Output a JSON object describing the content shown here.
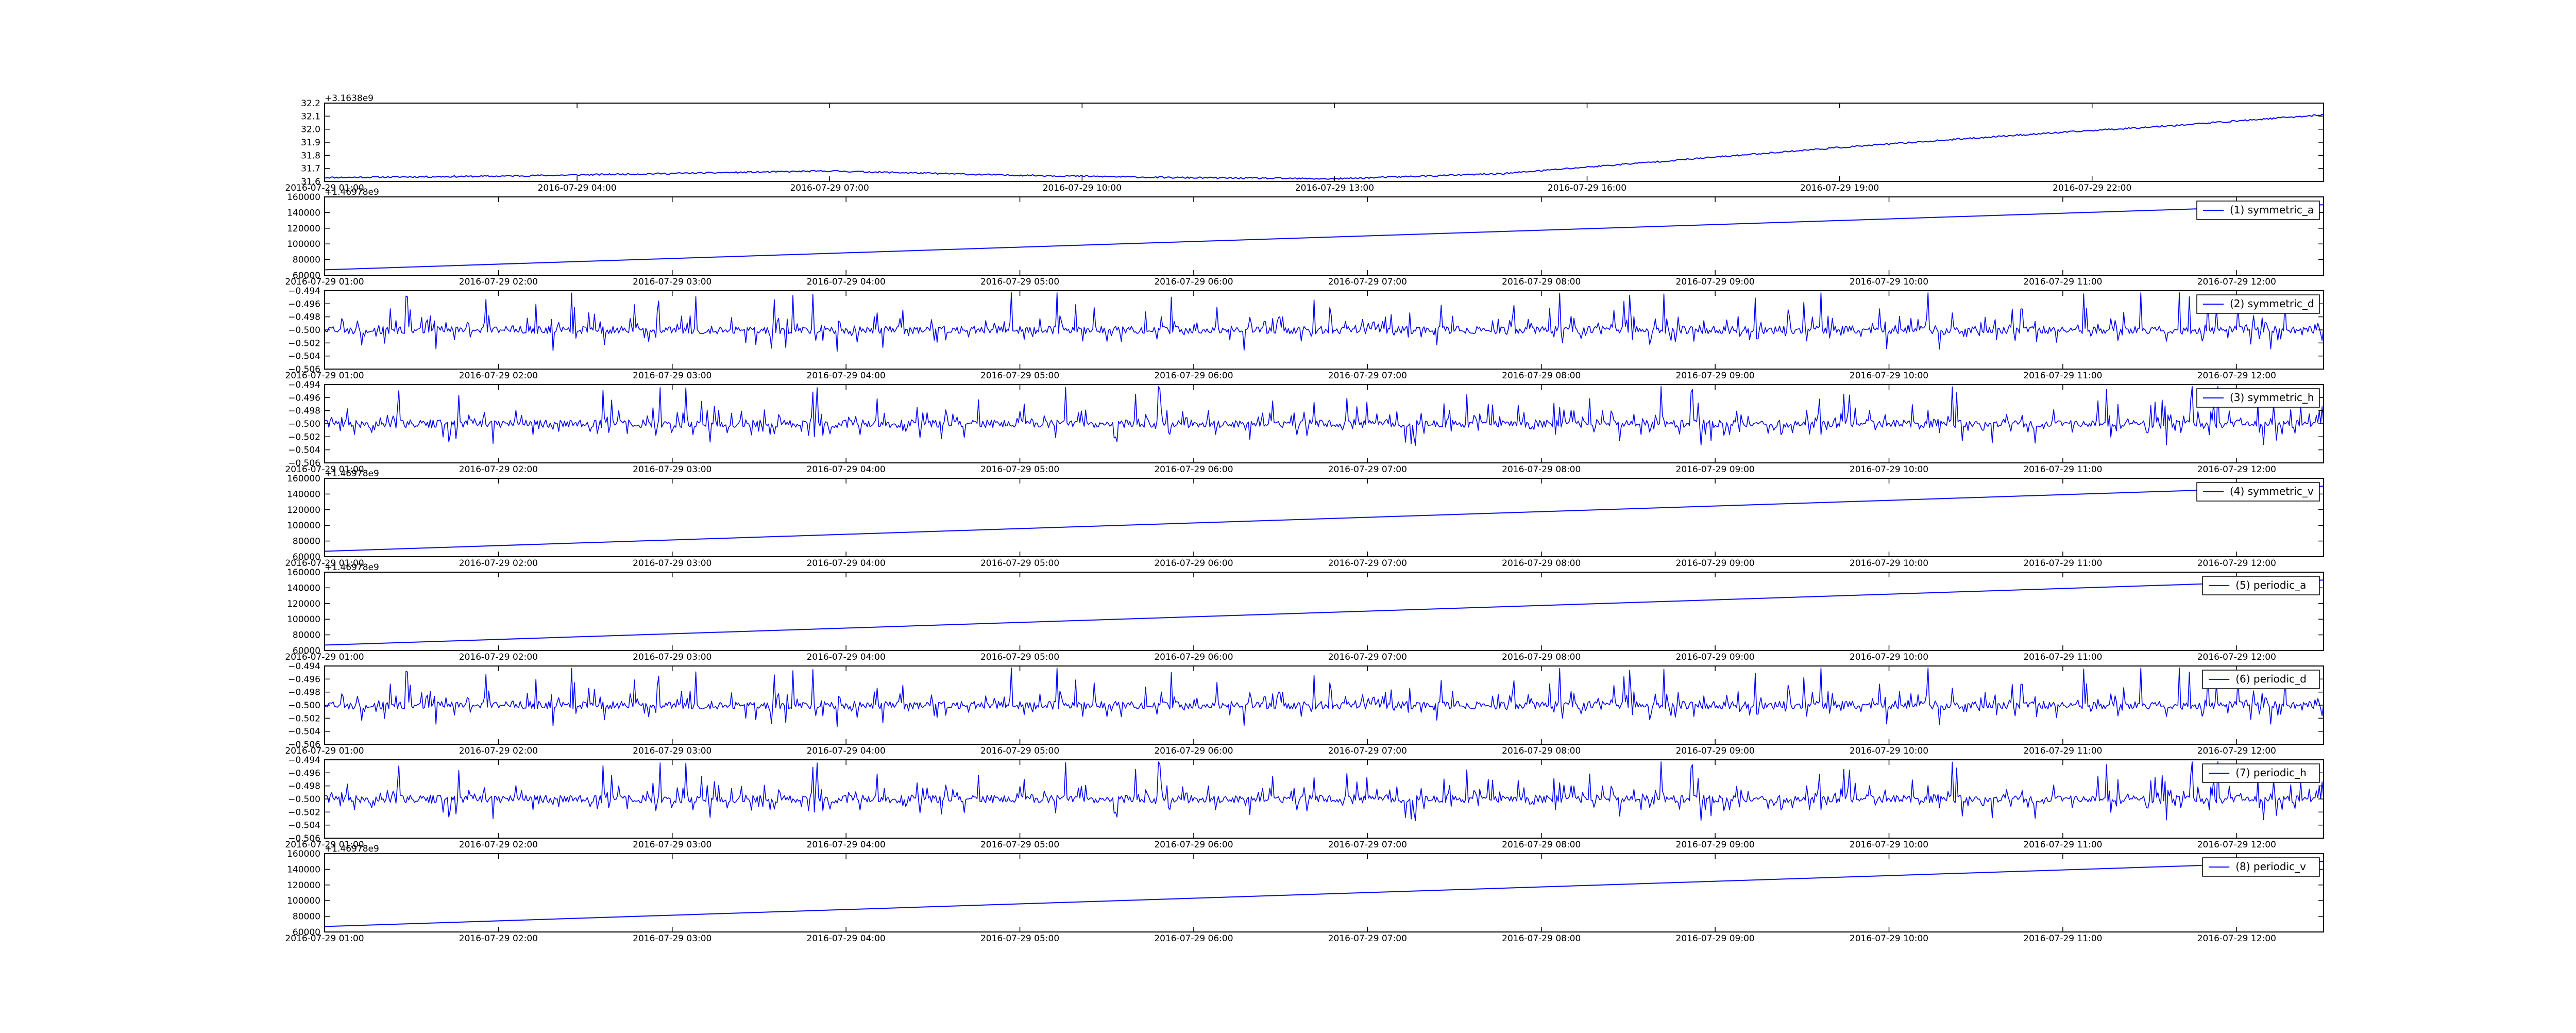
{
  "figure": {
    "background": "#ffffff",
    "line_color": "#0000ff"
  },
  "chart_data": [
    {
      "type": "line",
      "xlabel": "",
      "ylabel": "",
      "offset_text": "+3.1638e9",
      "x_start": "2016-07-29 01:00",
      "x_end": "2016-07-30 00:45",
      "xticks": [
        "2016-07-29 01:00",
        "2016-07-29 04:00",
        "2016-07-29 07:00",
        "2016-07-29 10:00",
        "2016-07-29 13:00",
        "2016-07-29 16:00",
        "2016-07-29 19:00",
        "2016-07-29 22:00"
      ],
      "ylim": [
        31.6,
        32.2
      ],
      "yticks": [
        "31.6",
        "31.7",
        "31.8",
        "31.9",
        "32.0",
        "32.1",
        "32.2"
      ],
      "pattern": "trend",
      "series": [
        {
          "x": [
            "2016-07-29 01:00",
            "2016-07-29 03:00",
            "2016-07-29 05:00",
            "2016-07-29 07:00",
            "2016-07-29 09:00",
            "2016-07-29 11:00",
            "2016-07-29 13:00",
            "2016-07-29 15:00",
            "2016-07-29 17:00",
            "2016-07-29 19:00",
            "2016-07-29 21:00",
            "2016-07-29 23:00",
            "2016-07-30 00:45"
          ],
          "values": [
            31.63,
            31.64,
            31.66,
            31.68,
            31.65,
            31.63,
            31.62,
            31.66,
            31.76,
            31.86,
            31.95,
            32.03,
            32.11
          ]
        }
      ],
      "legend": null
    },
    {
      "type": "line",
      "xlabel": "",
      "ylabel": "",
      "offset_text": "+1.46978e9",
      "x_start": "2016-07-29 01:00",
      "x_end": "2016-07-29 12:30",
      "xticks": [
        "2016-07-29 01:00",
        "2016-07-29 02:00",
        "2016-07-29 03:00",
        "2016-07-29 04:00",
        "2016-07-29 05:00",
        "2016-07-29 06:00",
        "2016-07-29 07:00",
        "2016-07-29 08:00",
        "2016-07-29 09:00",
        "2016-07-29 10:00",
        "2016-07-29 11:00",
        "2016-07-29 12:00"
      ],
      "ylim": [
        60000,
        160000
      ],
      "yticks": [
        "60000",
        "80000",
        "100000",
        "120000",
        "140000",
        "160000"
      ],
      "pattern": "linear",
      "series": [
        {
          "name": "(1) symmetric_a",
          "x": [
            "2016-07-29 01:00",
            "2016-07-29 12:30"
          ],
          "values": [
            67000,
            150000
          ]
        }
      ],
      "legend": "top-right"
    },
    {
      "type": "line",
      "xlabel": "",
      "ylabel": "",
      "offset_text": "",
      "x_start": "2016-07-29 01:00",
      "x_end": "2016-07-29 12:30",
      "xticks": [
        "2016-07-29 01:00",
        "2016-07-29 02:00",
        "2016-07-29 03:00",
        "2016-07-29 04:00",
        "2016-07-29 05:00",
        "2016-07-29 06:00",
        "2016-07-29 07:00",
        "2016-07-29 08:00",
        "2016-07-29 09:00",
        "2016-07-29 10:00",
        "2016-07-29 11:00",
        "2016-07-29 12:00"
      ],
      "ylim": [
        -0.506,
        -0.494
      ],
      "yticks": [
        "−0.506",
        "−0.504",
        "−0.502",
        "−0.500",
        "−0.498",
        "−0.496",
        "−0.494"
      ],
      "pattern": "noise",
      "baseline": -0.5,
      "seed": 3,
      "series": [
        {
          "name": "(2) symmetric_d"
        }
      ],
      "legend": "top-right"
    },
    {
      "type": "line",
      "xlabel": "",
      "ylabel": "",
      "offset_text": "",
      "x_start": "2016-07-29 01:00",
      "x_end": "2016-07-29 12:30",
      "xticks": [
        "2016-07-29 01:00",
        "2016-07-29 02:00",
        "2016-07-29 03:00",
        "2016-07-29 04:00",
        "2016-07-29 05:00",
        "2016-07-29 06:00",
        "2016-07-29 07:00",
        "2016-07-29 08:00",
        "2016-07-29 09:00",
        "2016-07-29 10:00",
        "2016-07-29 11:00",
        "2016-07-29 12:00"
      ],
      "ylim": [
        -0.506,
        -0.494
      ],
      "yticks": [
        "−0.506",
        "−0.504",
        "−0.502",
        "−0.500",
        "−0.498",
        "−0.496",
        "−0.494"
      ],
      "pattern": "noise",
      "baseline": -0.5,
      "seed": 7,
      "series": [
        {
          "name": "(3) symmetric_h"
        }
      ],
      "legend": "top-right"
    },
    {
      "type": "line",
      "xlabel": "",
      "ylabel": "",
      "offset_text": "+1.46978e9",
      "x_start": "2016-07-29 01:00",
      "x_end": "2016-07-29 12:30",
      "xticks": [
        "2016-07-29 01:00",
        "2016-07-29 02:00",
        "2016-07-29 03:00",
        "2016-07-29 04:00",
        "2016-07-29 05:00",
        "2016-07-29 06:00",
        "2016-07-29 07:00",
        "2016-07-29 08:00",
        "2016-07-29 09:00",
        "2016-07-29 10:00",
        "2016-07-29 11:00",
        "2016-07-29 12:00"
      ],
      "ylim": [
        60000,
        160000
      ],
      "yticks": [
        "60000",
        "80000",
        "100000",
        "120000",
        "140000",
        "160000"
      ],
      "pattern": "linear",
      "series": [
        {
          "name": "(4) symmetric_v",
          "x": [
            "2016-07-29 01:00",
            "2016-07-29 12:30"
          ],
          "values": [
            67000,
            150000
          ]
        }
      ],
      "legend": "top-right"
    },
    {
      "type": "line",
      "xlabel": "",
      "ylabel": "",
      "offset_text": "+1.46978e9",
      "x_start": "2016-07-29 01:00",
      "x_end": "2016-07-29 12:30",
      "xticks": [
        "2016-07-29 01:00",
        "2016-07-29 02:00",
        "2016-07-29 03:00",
        "2016-07-29 04:00",
        "2016-07-29 05:00",
        "2016-07-29 06:00",
        "2016-07-29 07:00",
        "2016-07-29 08:00",
        "2016-07-29 09:00",
        "2016-07-29 10:00",
        "2016-07-29 11:00",
        "2016-07-29 12:00"
      ],
      "ylim": [
        60000,
        160000
      ],
      "yticks": [
        "60000",
        "80000",
        "100000",
        "120000",
        "140000",
        "160000"
      ],
      "pattern": "linear",
      "series": [
        {
          "name": "(5) periodic_a",
          "x": [
            "2016-07-29 01:00",
            "2016-07-29 12:30"
          ],
          "values": [
            67000,
            150000
          ]
        }
      ],
      "legend": "top-right"
    },
    {
      "type": "line",
      "xlabel": "",
      "ylabel": "",
      "offset_text": "",
      "x_start": "2016-07-29 01:00",
      "x_end": "2016-07-29 12:30",
      "xticks": [
        "2016-07-29 01:00",
        "2016-07-29 02:00",
        "2016-07-29 03:00",
        "2016-07-29 04:00",
        "2016-07-29 05:00",
        "2016-07-29 06:00",
        "2016-07-29 07:00",
        "2016-07-29 08:00",
        "2016-07-29 09:00",
        "2016-07-29 10:00",
        "2016-07-29 11:00",
        "2016-07-29 12:00"
      ],
      "ylim": [
        -0.506,
        -0.494
      ],
      "yticks": [
        "−0.506",
        "−0.504",
        "−0.502",
        "−0.500",
        "−0.498",
        "−0.496",
        "−0.494"
      ],
      "pattern": "noise",
      "baseline": -0.5,
      "seed": 3,
      "series": [
        {
          "name": "(6) periodic_d"
        }
      ],
      "legend": "top-right"
    },
    {
      "type": "line",
      "xlabel": "",
      "ylabel": "",
      "offset_text": "",
      "x_start": "2016-07-29 01:00",
      "x_end": "2016-07-29 12:30",
      "xticks": [
        "2016-07-29 01:00",
        "2016-07-29 02:00",
        "2016-07-29 03:00",
        "2016-07-29 04:00",
        "2016-07-29 05:00",
        "2016-07-29 06:00",
        "2016-07-29 07:00",
        "2016-07-29 08:00",
        "2016-07-29 09:00",
        "2016-07-29 10:00",
        "2016-07-29 11:00",
        "2016-07-29 12:00"
      ],
      "ylim": [
        -0.506,
        -0.494
      ],
      "yticks": [
        "−0.506",
        "−0.504",
        "−0.502",
        "−0.500",
        "−0.498",
        "−0.496",
        "−0.494"
      ],
      "pattern": "noise",
      "baseline": -0.5,
      "seed": 7,
      "series": [
        {
          "name": "(7) periodic_h"
        }
      ],
      "legend": "top-right"
    },
    {
      "type": "line",
      "xlabel": "",
      "ylabel": "",
      "offset_text": "+1.46978e9",
      "x_start": "2016-07-29 01:00",
      "x_end": "2016-07-29 12:30",
      "xticks": [
        "2016-07-29 01:00",
        "2016-07-29 02:00",
        "2016-07-29 03:00",
        "2016-07-29 04:00",
        "2016-07-29 05:00",
        "2016-07-29 06:00",
        "2016-07-29 07:00",
        "2016-07-29 08:00",
        "2016-07-29 09:00",
        "2016-07-29 10:00",
        "2016-07-29 11:00",
        "2016-07-29 12:00"
      ],
      "ylim": [
        60000,
        160000
      ],
      "yticks": [
        "60000",
        "80000",
        "100000",
        "120000",
        "140000",
        "160000"
      ],
      "pattern": "linear",
      "series": [
        {
          "name": "(8) periodic_v",
          "x": [
            "2016-07-29 01:00",
            "2016-07-29 12:30"
          ],
          "values": [
            67000,
            150000
          ]
        }
      ],
      "legend": "top-right"
    }
  ]
}
